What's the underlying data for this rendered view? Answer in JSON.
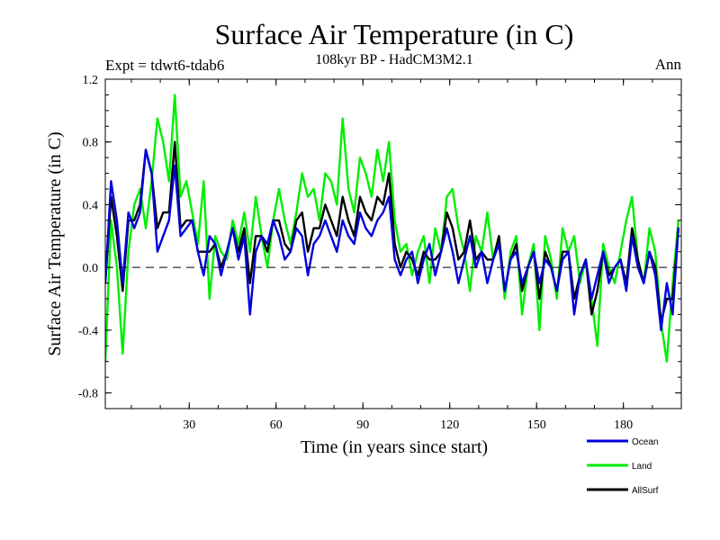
{
  "chart_data": {
    "type": "line",
    "title": "Surface Air Temperature (in C)",
    "subtitle": "108kyr BP - HadCM3M2.1",
    "experiment_label": "Expt = tdwt6-tdab6",
    "season_label": "Ann",
    "xlabel": "Time (in years since start)",
    "ylabel": "Surface Air Temperature (in C)",
    "xlim": [
      1,
      200
    ],
    "ylim": [
      -0.9,
      1.2
    ],
    "x_ticks": [
      30,
      60,
      90,
      120,
      150,
      180
    ],
    "x_tick_labels": [
      "30",
      "60",
      "90",
      "120",
      "150",
      "180"
    ],
    "y_ticks": [
      1.2,
      0.8,
      0.4,
      0.0,
      -0.4,
      -0.8
    ],
    "y_tick_labels": [
      "1.2",
      "0.8",
      "0.4",
      "0.0",
      "-0.4",
      "-0.8"
    ],
    "reference_line": 0.0,
    "legend_position": "bottom-right, below plot",
    "series": [
      {
        "name": "Land",
        "color": "#00ee00",
        "keypoints": [
          [
            1,
            -0.6
          ],
          [
            3,
            0.3
          ],
          [
            5,
            0.0
          ],
          [
            7,
            -0.55
          ],
          [
            9,
            0.1
          ],
          [
            11,
            0.4
          ],
          [
            13,
            0.5
          ],
          [
            15,
            0.25
          ],
          [
            17,
            0.55
          ],
          [
            19,
            0.95
          ],
          [
            21,
            0.8
          ],
          [
            23,
            0.55
          ],
          [
            25,
            1.1
          ],
          [
            27,
            0.45
          ],
          [
            29,
            0.55
          ],
          [
            31,
            0.35
          ],
          [
            33,
            0.15
          ],
          [
            35,
            0.55
          ],
          [
            37,
            -0.2
          ],
          [
            39,
            0.2
          ],
          [
            41,
            0.1
          ],
          [
            43,
            0.05
          ],
          [
            45,
            0.3
          ],
          [
            47,
            0.15
          ],
          [
            49,
            0.35
          ],
          [
            51,
            0.1
          ],
          [
            53,
            0.45
          ],
          [
            55,
            0.2
          ],
          [
            57,
            0.0
          ],
          [
            59,
            0.3
          ],
          [
            61,
            0.5
          ],
          [
            63,
            0.3
          ],
          [
            65,
            0.15
          ],
          [
            67,
            0.35
          ],
          [
            69,
            0.6
          ],
          [
            71,
            0.45
          ],
          [
            73,
            0.5
          ],
          [
            75,
            0.3
          ],
          [
            77,
            0.6
          ],
          [
            79,
            0.55
          ],
          [
            81,
            0.4
          ],
          [
            83,
            0.95
          ],
          [
            85,
            0.5
          ],
          [
            87,
            0.35
          ],
          [
            89,
            0.7
          ],
          [
            91,
            0.6
          ],
          [
            93,
            0.45
          ],
          [
            95,
            0.75
          ],
          [
            97,
            0.55
          ],
          [
            99,
            0.8
          ],
          [
            101,
            0.3
          ],
          [
            103,
            0.1
          ],
          [
            105,
            0.15
          ],
          [
            107,
            -0.05
          ],
          [
            109,
            0.1
          ],
          [
            111,
            0.2
          ],
          [
            113,
            -0.1
          ],
          [
            115,
            0.25
          ],
          [
            117,
            0.1
          ],
          [
            119,
            0.45
          ],
          [
            121,
            0.5
          ],
          [
            123,
            0.25
          ],
          [
            125,
            0.1
          ],
          [
            127,
            -0.15
          ],
          [
            129,
            0.2
          ],
          [
            131,
            0.1
          ],
          [
            133,
            0.35
          ],
          [
            135,
            0.05
          ],
          [
            137,
            0.2
          ],
          [
            139,
            -0.2
          ],
          [
            141,
            0.1
          ],
          [
            143,
            0.2
          ],
          [
            145,
            -0.3
          ],
          [
            147,
            0.0
          ],
          [
            149,
            0.15
          ],
          [
            151,
            -0.4
          ],
          [
            153,
            0.2
          ],
          [
            155,
            0.05
          ],
          [
            157,
            -0.2
          ],
          [
            159,
            0.25
          ],
          [
            161,
            0.1
          ],
          [
            163,
            0.2
          ],
          [
            165,
            -0.1
          ],
          [
            167,
            0.05
          ],
          [
            169,
            -0.2
          ],
          [
            171,
            -0.5
          ],
          [
            173,
            0.15
          ],
          [
            175,
            0.0
          ],
          [
            177,
            -0.1
          ],
          [
            179,
            0.1
          ],
          [
            181,
            0.3
          ],
          [
            183,
            0.45
          ],
          [
            185,
            0.05
          ],
          [
            187,
            -0.1
          ],
          [
            189,
            0.25
          ],
          [
            191,
            0.1
          ],
          [
            193,
            -0.35
          ],
          [
            195,
            -0.6
          ],
          [
            197,
            -0.1
          ],
          [
            199,
            0.3
          ]
        ]
      },
      {
        "name": "Ocean",
        "color": "#0000dd",
        "keypoints": [
          [
            1,
            -0.1
          ],
          [
            3,
            0.55
          ],
          [
            5,
            0.3
          ],
          [
            7,
            -0.1
          ],
          [
            9,
            0.35
          ],
          [
            11,
            0.25
          ],
          [
            13,
            0.35
          ],
          [
            15,
            0.75
          ],
          [
            17,
            0.6
          ],
          [
            19,
            0.1
          ],
          [
            21,
            0.2
          ],
          [
            23,
            0.3
          ],
          [
            25,
            0.65
          ],
          [
            27,
            0.2
          ],
          [
            29,
            0.25
          ],
          [
            31,
            0.3
          ],
          [
            33,
            0.1
          ],
          [
            35,
            -0.05
          ],
          [
            37,
            0.2
          ],
          [
            39,
            0.15
          ],
          [
            41,
            -0.05
          ],
          [
            43,
            0.1
          ],
          [
            45,
            0.25
          ],
          [
            47,
            0.05
          ],
          [
            49,
            0.2
          ],
          [
            51,
            -0.3
          ],
          [
            53,
            0.1
          ],
          [
            55,
            0.2
          ],
          [
            57,
            0.15
          ],
          [
            59,
            0.3
          ],
          [
            61,
            0.2
          ],
          [
            63,
            0.05
          ],
          [
            65,
            0.1
          ],
          [
            67,
            0.25
          ],
          [
            69,
            0.2
          ],
          [
            71,
            -0.05
          ],
          [
            73,
            0.15
          ],
          [
            75,
            0.2
          ],
          [
            77,
            0.3
          ],
          [
            79,
            0.2
          ],
          [
            81,
            0.1
          ],
          [
            83,
            0.3
          ],
          [
            85,
            0.2
          ],
          [
            87,
            0.15
          ],
          [
            89,
            0.35
          ],
          [
            91,
            0.25
          ],
          [
            93,
            0.2
          ],
          [
            95,
            0.3
          ],
          [
            97,
            0.35
          ],
          [
            99,
            0.45
          ],
          [
            101,
            0.05
          ],
          [
            103,
            -0.05
          ],
          [
            105,
            0.05
          ],
          [
            107,
            0.1
          ],
          [
            109,
            -0.1
          ],
          [
            111,
            0.05
          ],
          [
            113,
            0.15
          ],
          [
            115,
            -0.05
          ],
          [
            117,
            0.1
          ],
          [
            119,
            0.25
          ],
          [
            121,
            0.1
          ],
          [
            123,
            -0.1
          ],
          [
            125,
            0.05
          ],
          [
            127,
            0.2
          ],
          [
            129,
            0.0
          ],
          [
            131,
            0.1
          ],
          [
            133,
            -0.1
          ],
          [
            135,
            0.05
          ],
          [
            137,
            0.15
          ],
          [
            139,
            -0.15
          ],
          [
            141,
            0.05
          ],
          [
            143,
            0.1
          ],
          [
            145,
            -0.1
          ],
          [
            147,
            0.0
          ],
          [
            149,
            0.1
          ],
          [
            151,
            -0.1
          ],
          [
            153,
            0.05
          ],
          [
            155,
            0.0
          ],
          [
            157,
            -0.15
          ],
          [
            159,
            0.05
          ],
          [
            161,
            0.1
          ],
          [
            163,
            -0.3
          ],
          [
            165,
            -0.05
          ],
          [
            167,
            0.05
          ],
          [
            169,
            -0.2
          ],
          [
            171,
            -0.05
          ],
          [
            173,
            0.1
          ],
          [
            175,
            -0.1
          ],
          [
            177,
            0.0
          ],
          [
            179,
            0.05
          ],
          [
            181,
            -0.15
          ],
          [
            183,
            0.2
          ],
          [
            185,
            0.0
          ],
          [
            187,
            -0.1
          ],
          [
            189,
            0.1
          ],
          [
            191,
            -0.05
          ],
          [
            193,
            -0.4
          ],
          [
            195,
            -0.1
          ],
          [
            197,
            -0.3
          ],
          [
            199,
            0.25
          ]
        ]
      },
      {
        "name": "AllSurf",
        "color": "#000000",
        "keypoints": [
          [
            1,
            -0.1
          ],
          [
            3,
            0.45
          ],
          [
            5,
            0.2
          ],
          [
            7,
            -0.15
          ],
          [
            9,
            0.3
          ],
          [
            11,
            0.3
          ],
          [
            13,
            0.4
          ],
          [
            15,
            0.75
          ],
          [
            17,
            0.6
          ],
          [
            19,
            0.25
          ],
          [
            21,
            0.35
          ],
          [
            23,
            0.35
          ],
          [
            25,
            0.8
          ],
          [
            27,
            0.25
          ],
          [
            29,
            0.3
          ],
          [
            31,
            0.3
          ],
          [
            33,
            0.1
          ],
          [
            35,
            0.1
          ],
          [
            37,
            0.1
          ],
          [
            39,
            0.15
          ],
          [
            41,
            0.0
          ],
          [
            43,
            0.1
          ],
          [
            45,
            0.25
          ],
          [
            47,
            0.1
          ],
          [
            49,
            0.25
          ],
          [
            51,
            -0.1
          ],
          [
            53,
            0.2
          ],
          [
            55,
            0.2
          ],
          [
            57,
            0.1
          ],
          [
            59,
            0.3
          ],
          [
            61,
            0.3
          ],
          [
            63,
            0.15
          ],
          [
            65,
            0.1
          ],
          [
            67,
            0.3
          ],
          [
            69,
            0.35
          ],
          [
            71,
            0.1
          ],
          [
            73,
            0.25
          ],
          [
            75,
            0.25
          ],
          [
            77,
            0.4
          ],
          [
            79,
            0.3
          ],
          [
            81,
            0.2
          ],
          [
            83,
            0.45
          ],
          [
            85,
            0.3
          ],
          [
            87,
            0.2
          ],
          [
            89,
            0.45
          ],
          [
            91,
            0.35
          ],
          [
            93,
            0.3
          ],
          [
            95,
            0.45
          ],
          [
            97,
            0.4
          ],
          [
            99,
            0.6
          ],
          [
            101,
            0.15
          ],
          [
            103,
            0.0
          ],
          [
            105,
            0.1
          ],
          [
            107,
            0.05
          ],
          [
            109,
            -0.05
          ],
          [
            111,
            0.1
          ],
          [
            113,
            0.05
          ],
          [
            115,
            0.05
          ],
          [
            117,
            0.1
          ],
          [
            119,
            0.35
          ],
          [
            121,
            0.25
          ],
          [
            123,
            0.05
          ],
          [
            125,
            0.1
          ],
          [
            127,
            0.3
          ],
          [
            129,
            0.05
          ],
          [
            131,
            0.1
          ],
          [
            133,
            0.05
          ],
          [
            135,
            0.05
          ],
          [
            137,
            0.2
          ],
          [
            139,
            -0.15
          ],
          [
            141,
            0.05
          ],
          [
            143,
            0.15
          ],
          [
            145,
            -0.15
          ],
          [
            147,
            0.0
          ],
          [
            149,
            0.1
          ],
          [
            151,
            -0.2
          ],
          [
            153,
            0.1
          ],
          [
            155,
            0.0
          ],
          [
            157,
            -0.15
          ],
          [
            159,
            0.1
          ],
          [
            161,
            0.1
          ],
          [
            163,
            -0.2
          ],
          [
            165,
            -0.05
          ],
          [
            167,
            0.05
          ],
          [
            169,
            -0.3
          ],
          [
            171,
            -0.15
          ],
          [
            173,
            0.1
          ],
          [
            175,
            -0.05
          ],
          [
            177,
            0.0
          ],
          [
            179,
            0.05
          ],
          [
            181,
            -0.1
          ],
          [
            183,
            0.25
          ],
          [
            185,
            0.05
          ],
          [
            187,
            -0.1
          ],
          [
            189,
            0.1
          ],
          [
            191,
            0.0
          ],
          [
            193,
            -0.35
          ],
          [
            195,
            -0.2
          ],
          [
            197,
            -0.2
          ],
          [
            199,
            0.25
          ]
        ]
      }
    ]
  }
}
